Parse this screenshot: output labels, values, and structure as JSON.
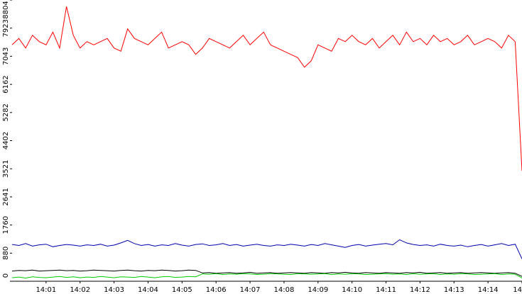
{
  "chart_data": {
    "type": "line",
    "x": [
      0,
      0.2,
      0.4,
      0.6,
      0.8,
      1,
      1.2,
      1.4,
      1.6,
      1.8,
      2,
      2.2,
      2.4,
      2.6,
      2.8,
      3,
      3.2,
      3.4,
      3.6,
      3.8,
      4,
      4.2,
      4.4,
      4.6,
      4.8,
      5,
      5.2,
      5.4,
      5.6,
      5.8,
      6,
      6.2,
      6.4,
      6.6,
      6.8,
      7,
      7.2,
      7.4,
      7.6,
      7.8,
      8,
      8.2,
      8.4,
      8.6,
      8.8,
      9,
      9.2,
      9.4,
      9.6,
      9.8,
      10,
      10.2,
      10.4,
      10.6,
      10.8,
      11,
      11.2,
      11.4,
      11.6,
      11.8,
      12,
      12.2,
      12.4,
      12.6,
      12.8,
      13,
      13.2,
      13.4,
      13.6,
      13.8,
      14,
      14.2,
      14.4,
      14.6,
      14.8,
      15
    ],
    "series": [
      {
        "color": "#ff0000",
        "values": [
          7400,
          7600,
          7300,
          7700,
          7500,
          7400,
          7800,
          7300,
          8600,
          7700,
          7300,
          7500,
          7400,
          7500,
          7600,
          7300,
          7200,
          7900,
          7600,
          7500,
          7400,
          7600,
          7800,
          7300,
          7400,
          7500,
          7400,
          7100,
          7300,
          7600,
          7500,
          7400,
          7300,
          7500,
          7700,
          7400,
          7600,
          7800,
          7400,
          7300,
          7200,
          7100,
          7000,
          6700,
          6900,
          7400,
          7300,
          7200,
          7600,
          7500,
          7700,
          7500,
          7400,
          7600,
          7300,
          7500,
          7700,
          7400,
          7800,
          7500,
          7600,
          7400,
          7700,
          7500,
          7600,
          7400,
          7500,
          7700,
          7400,
          7500,
          7600,
          7500,
          7300,
          7700,
          7500,
          3450
        ]
      },
      {
        "color": "#0000aa",
        "values": [
          1150,
          1120,
          1180,
          1100,
          1140,
          1160,
          1080,
          1120,
          1150,
          1130,
          1100,
          1140,
          1120,
          1160,
          1100,
          1130,
          1200,
          1280,
          1180,
          1120,
          1150,
          1100,
          1140,
          1120,
          1180,
          1130,
          1100,
          1150,
          1170,
          1120,
          1140,
          1180,
          1120,
          1150,
          1100,
          1130,
          1160,
          1120,
          1100,
          1140,
          1120,
          1160,
          1130,
          1100,
          1150,
          1120,
          1180,
          1140,
          1100,
          1060,
          1120,
          1150,
          1100,
          1130,
          1160,
          1180,
          1140,
          1300,
          1200,
          1150,
          1120,
          1140,
          1100,
          1160,
          1120,
          1100,
          1130,
          1080,
          1120,
          1150,
          1100,
          1140,
          1180,
          1120,
          1160,
          700
        ]
      },
      {
        "color": "#000000",
        "values": [
          320,
          340,
          330,
          350,
          320,
          330,
          340,
          350,
          330,
          340,
          320,
          330,
          350,
          340,
          330,
          320,
          340,
          350,
          330,
          320,
          340,
          330,
          350,
          340,
          320,
          330,
          350,
          340,
          260,
          270,
          250,
          260,
          270,
          250,
          260,
          280,
          250,
          260,
          270,
          250,
          260,
          270,
          260,
          250,
          270,
          260,
          250,
          270,
          260,
          280,
          260,
          250,
          270,
          260,
          250,
          270,
          260,
          250,
          270,
          260,
          280,
          250,
          260,
          270,
          250,
          260,
          270,
          250,
          260,
          270,
          260,
          250,
          260,
          270,
          250,
          150
        ]
      },
      {
        "color": "#00cc00",
        "values": [
          110,
          130,
          100,
          140,
          120,
          110,
          130,
          150,
          120,
          140,
          110,
          130,
          120,
          150,
          130,
          110,
          140,
          130,
          120,
          150,
          130,
          110,
          140,
          150,
          120,
          130,
          150,
          140,
          230,
          220,
          240,
          210,
          230,
          220,
          240,
          230,
          210,
          220,
          240,
          230,
          220,
          210,
          240,
          230,
          220,
          230,
          240,
          210,
          230,
          220,
          240,
          230,
          210,
          220,
          230,
          240,
          220,
          230,
          210,
          240,
          220,
          230,
          240,
          210,
          230,
          220,
          240,
          230,
          210,
          220,
          230,
          240,
          210,
          230,
          220,
          100
        ]
      }
    ],
    "xlim": [
      0,
      15
    ],
    "ylim": [
      0,
      8804
    ],
    "yticks": [
      0,
      880,
      1760,
      2641,
      3521,
      4402,
      5282,
      6162,
      7043,
      7923,
      8804
    ],
    "xticks": [
      {
        "value": 1,
        "label": "14:01"
      },
      {
        "value": 2,
        "label": "14:02"
      },
      {
        "value": 3,
        "label": "14:03"
      },
      {
        "value": 4,
        "label": "14:04"
      },
      {
        "value": 5,
        "label": "14:05"
      },
      {
        "value": 6,
        "label": "14:06"
      },
      {
        "value": 7,
        "label": "14:07"
      },
      {
        "value": 8,
        "label": "14:08"
      },
      {
        "value": 9,
        "label": "14:09"
      },
      {
        "value": 10,
        "label": "14:10"
      },
      {
        "value": 11,
        "label": "14:11"
      },
      {
        "value": 12,
        "label": "14:12"
      },
      {
        "value": 13,
        "label": "14:13"
      },
      {
        "value": 14,
        "label": "14:14"
      },
      {
        "value": 15,
        "label": "14"
      }
    ]
  }
}
